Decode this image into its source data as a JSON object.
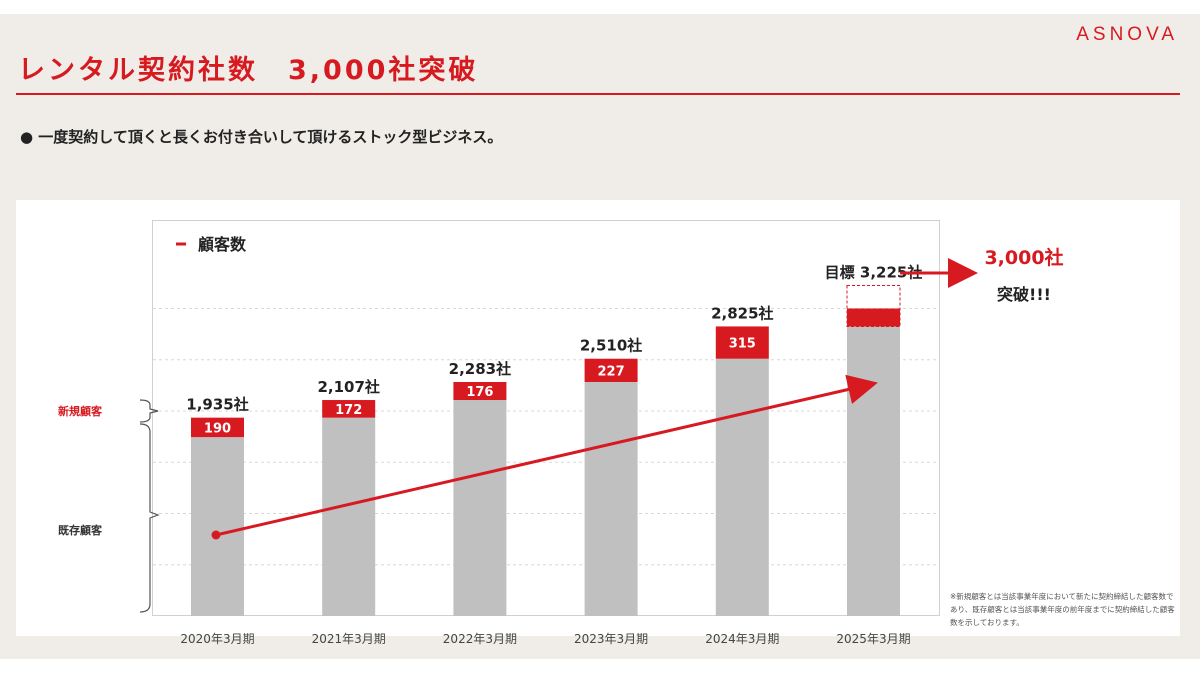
{
  "logo": "ASNOVA",
  "title": "レンタル契約社数　3,000社突破",
  "bullet": "● 一度契約して頂くと長くお付き合いして頂けるストック型ビジネス。",
  "labels": {
    "new": "新規顧客",
    "existing": "既存顧客"
  },
  "note": "※新規顧客とは当該事業年度において新たに契約締結した顧客数であり、既存顧客とは当該事業年度の前年度までに契約締結した顧客数を示しております。",
  "colors": {
    "accent": "#d71920",
    "bar_gray": "#c0c0c0"
  },
  "chart_data": {
    "type": "bar",
    "stacked": true,
    "legend": "顧客数",
    "categories": [
      "2020年3月期",
      "2021年3月期",
      "2022年3月期",
      "2023年3月期",
      "2024年3月期",
      "2025年3月期"
    ],
    "series": [
      {
        "name": "既存顧客",
        "values": [
          1745,
          1935,
          2107,
          2283,
          2510,
          2825
        ]
      },
      {
        "name": "新規顧客",
        "values": [
          190,
          172,
          176,
          227,
          315,
          400
        ]
      }
    ],
    "new_labels": [
      "190",
      "172",
      "176",
      "227",
      "315",
      ""
    ],
    "total_labels": [
      "1,935社",
      "2,107社",
      "2,283社",
      "2,510社",
      "2,825社",
      "目標 3,225社"
    ],
    "target_index": 5,
    "threshold": 3000,
    "callout": {
      "value": "3,000社",
      "text": "突破!!!"
    },
    "ylim": [
      0,
      3500
    ],
    "grid": true
  }
}
